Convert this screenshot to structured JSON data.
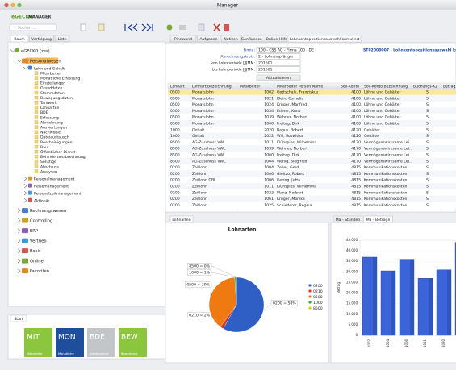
{
  "window": {
    "title": "Manager"
  },
  "header": {
    "brand": "eGECKO",
    "product": "MANAGER",
    "search_placeholder": "Suchen ..."
  },
  "left_tabs": [
    "Baum",
    "Verfolgung",
    "Liste"
  ],
  "tree": [
    {
      "label": "eGECKO (zes)",
      "children": [
        {
          "label": "Personalwesen",
          "children": [
            {
              "label": "Lohn und Gehalt",
              "children": [
                {
                  "label": "Mitarbeiter"
                },
                {
                  "label": "Monatliche Erfassung"
                },
                {
                  "label": "Einstellungen"
                },
                {
                  "label": "Grunddaten"
                },
                {
                  "label": "Stammdaten"
                },
                {
                  "label": "Bewegungsdaten"
                },
                {
                  "label": "Tarifwerk"
                },
                {
                  "label": "Lohnarten"
                },
                {
                  "label": "BDE"
                },
                {
                  "label": "Erfassung"
                },
                {
                  "label": "Abrechnung"
                },
                {
                  "label": "Auswertungen"
                },
                {
                  "label": "Nachweise"
                },
                {
                  "label": "Dateiaustausch"
                },
                {
                  "label": "Bescheinigungen"
                },
                {
                  "label": "Bau"
                },
                {
                  "label": "Öffentlicher Dienst"
                },
                {
                  "label": "Behindertenabrechnung"
                },
                {
                  "label": "Sonstige"
                },
                {
                  "label": "Abschluss"
                },
                {
                  "label": "Analysen"
                }
              ]
            },
            {
              "label": "Personalmanagement"
            },
            {
              "label": "Reisemanagement"
            },
            {
              "label": "Personalzeitmanagement"
            },
            {
              "label": "Aktionär"
            }
          ]
        },
        {
          "label": "Rechnungswesen"
        },
        {
          "label": "Controlling"
        },
        {
          "label": "ERP"
        },
        {
          "label": "Vertrieb"
        },
        {
          "label": "Basis"
        },
        {
          "label": "Online"
        },
        {
          "label": "Favoriten"
        }
      ]
    }
  ],
  "start": {
    "tab": "Start",
    "tiles": [
      {
        "code": "MIT",
        "label": "Mitarbeiter",
        "color": "#8cc63e"
      },
      {
        "code": "MON",
        "label": "Monatliche",
        "color": "#1f4e9c"
      },
      {
        "code": "BDE",
        "label": "Arbeitsvorrat",
        "color": "#c3c6c9"
      },
      {
        "code": "BEW",
        "label": "Bewerbung",
        "color": "#8cc63e"
      }
    ]
  },
  "main_tabs": [
    "Pinnwand",
    "Aufgaben",
    "Notizen",
    "Confluence - Online Hilfe",
    "Lohnkontopositionsauswahl kumuliert"
  ],
  "report_title": "ST02000007 - Lohnkontopositionsauswahl kumuliert",
  "form": {
    "fields": [
      {
        "label": "Firma:",
        "value": "100 - CSS AG - Firma 100 - DE -"
      },
      {
        "label": "Abrechnungskreis:",
        "value": "2 - Lohnempfänger"
      },
      {
        "label": "von Lohnperiode JJJJMM:",
        "value": "201601"
      },
      {
        "label": "bis Lohnperiode JJJJMM:",
        "value": "201601"
      }
    ],
    "button": "Aktualisieren"
  },
  "table": {
    "columns": [
      "Lohnart",
      "Lohnart Bezeichnung",
      "Mitarbeiter",
      "Mitarbeiter Person Name",
      "Soll-Konto",
      "Soll-Konto Bezeichnung",
      "Buchungs-KZ",
      "Betrag"
    ],
    "rows": [
      [
        "0500",
        "Monatslohn",
        "1002",
        "Gottschalk, Franziskus",
        "4100",
        "Löhne und Gehälter",
        "S"
      ],
      [
        "0500",
        "Monatslohn",
        "1021",
        "Klein, Cornelia",
        "4100",
        "Löhne und Gehälter",
        "S"
      ],
      [
        "0500",
        "Monatslohn",
        "1024",
        "Krüger, Manfred",
        "4100",
        "Löhne und Gehälter",
        "S"
      ],
      [
        "0500",
        "Monatslohn",
        "1034",
        "Ederer, Kuno",
        "4100",
        "Löhne und Gehälter",
        "S"
      ],
      [
        "0500",
        "Monatslohn",
        "1039",
        "Wehner, Norbert",
        "4100",
        "Löhne und Gehälter",
        "S"
      ],
      [
        "0500",
        "Monatslohn",
        "1060",
        "Freitag, Dirk",
        "4100",
        "Löhne und Gehälter",
        "S"
      ],
      [
        "1000",
        "Gehalt",
        "2020",
        "Bagus, Robert",
        "4120",
        "Gehälter",
        "S"
      ],
      [
        "1000",
        "Gehalt",
        "2022",
        "Will, Roswitha",
        "4120",
        "Gehälter",
        "S"
      ],
      [
        "8500",
        "AG-Zuschuss VWL",
        "1011",
        "Klühspies, Wilhemina",
        "4170",
        "Vermögenswirksame Lei...",
        "S"
      ],
      [
        "8500",
        "AG-Zuschuss VWL",
        "1039",
        "Wehner, Norbert",
        "4170",
        "Vermögenswirksame Lei...",
        "S"
      ],
      [
        "8500",
        "AG-Zuschuss VWL",
        "1060",
        "Freitag, Dirk",
        "4170",
        "Vermögenswirksame Lei...",
        "S"
      ],
      [
        "8500",
        "AG-Zuschuss VWL",
        "1064",
        "Wenig, Siegfried",
        "4170",
        "Vermögenswirksame Lei...",
        "S"
      ],
      [
        "0200",
        "Zeitlohn",
        "1004",
        "Zeller, Gerd",
        "4815",
        "Kommunikationskosten",
        "S"
      ],
      [
        "0200",
        "Zeitlohn",
        "1006",
        "Gleitzo, Robert",
        "4815",
        "Kommunikationskosten",
        "S"
      ],
      [
        "0200",
        "Zeitlohn DBI",
        "1006",
        "Gering, Jutta",
        "4815",
        "Kommunikationskosten",
        "S"
      ],
      [
        "0200",
        "Zeitlohn",
        "1011",
        "Klühspies, Wilhemina",
        "4815",
        "Kommunikationskosten",
        "S"
      ],
      [
        "0200",
        "Zeitlohn",
        "1023",
        "Manz, Norbert",
        "4815",
        "Kommunikationskosten",
        "S"
      ],
      [
        "0200",
        "Zeitlohn",
        "1061",
        "Krüger, Monika",
        "4815",
        "Kommunikationskosten",
        "S"
      ],
      [
        "0200",
        "Zeitlohn",
        "1025",
        "Schiederer, Regina",
        "4815",
        "Kommunikationskosten",
        "S"
      ]
    ]
  },
  "bottom_tabs": [
    "Lohnarten"
  ],
  "chart_tabs": [
    "Ma - Stunden",
    "Ma - Beträge"
  ],
  "chart_data": [
    {
      "type": "pie",
      "title": "Lohnarten",
      "categories": [
        "0200",
        "0210",
        "0500",
        "1000",
        "8500"
      ],
      "values": [
        58,
        2,
        39,
        1,
        0
      ],
      "value_labels": [
        "0200 = 58%",
        "0210 = 2%",
        "0500 = 39%",
        "1000 = 1%",
        "8500 = 0%"
      ],
      "colors": [
        "#2f5fc4",
        "#d43a2a",
        "#f07a12",
        "#3aa640",
        "#e8c51a"
      ]
    },
    {
      "type": "bar",
      "y_label": "Betrag",
      "categories": [
        "1002",
        "1004",
        "1006",
        "1011",
        "1020",
        "1021"
      ],
      "values": [
        37000,
        30500,
        36000,
        27000,
        31000,
        44000
      ],
      "color": "#3a64d8",
      "ylim": [
        0,
        45000
      ],
      "yticks": [
        0,
        {
          "value": 5000,
          "label": "5.000"
        },
        {
          "value": 10000,
          "label": "10.000"
        },
        {
          "value": 15000,
          "label": "15.000"
        },
        {
          "value": 20000,
          "label": "20.000"
        },
        {
          "value": 25000,
          "label": "25.000"
        },
        {
          "value": 30000,
          "label": "30.000"
        },
        {
          "value": 35000,
          "label": "35.000"
        },
        {
          "value": 40000,
          "label": "40.000"
        },
        {
          "value": 45000,
          "label": "45.000"
        }
      ],
      "grid": true
    }
  ]
}
